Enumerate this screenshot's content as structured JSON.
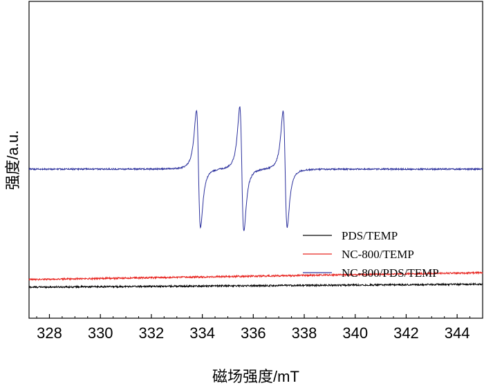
{
  "chart_data": {
    "type": "line",
    "title": "",
    "xlabel": "磁场强度/mT",
    "ylabel": "强度/a.u.",
    "xlim": [
      327.2,
      345
    ],
    "ylim": [
      -1.0,
      1.0
    ],
    "x_ticks": [
      328,
      330,
      332,
      334,
      336,
      338,
      340,
      342,
      344
    ],
    "y_ticks_shown": false,
    "grid": false,
    "legend_position": "center-right",
    "x_range": [
      327.2,
      345
    ],
    "series": [
      {
        "name": "PDS/TEMP",
        "color": "#000000",
        "baseline": -0.855,
        "drift_per_mT": 0.0012,
        "noise_amplitude": 0.006,
        "peaks": []
      },
      {
        "name": "NC-800/TEMP",
        "color": "#e8231e",
        "baseline": -0.8,
        "drift_per_mT": 0.0028,
        "noise_amplitude": 0.006,
        "peaks": []
      },
      {
        "name": "NC-800/PDS/TEMP",
        "color": "#2a2f9c",
        "baseline": 0.0,
        "drift_per_mT": 0.0,
        "noise_amplitude": 0.005,
        "peaks": [
          {
            "center": 333.85,
            "amplitude": 0.85,
            "width": 0.14
          },
          {
            "center": 335.55,
            "amplitude": 0.9,
            "width": 0.14
          },
          {
            "center": 337.25,
            "amplitude": 0.84,
            "width": 0.14
          }
        ]
      }
    ]
  }
}
